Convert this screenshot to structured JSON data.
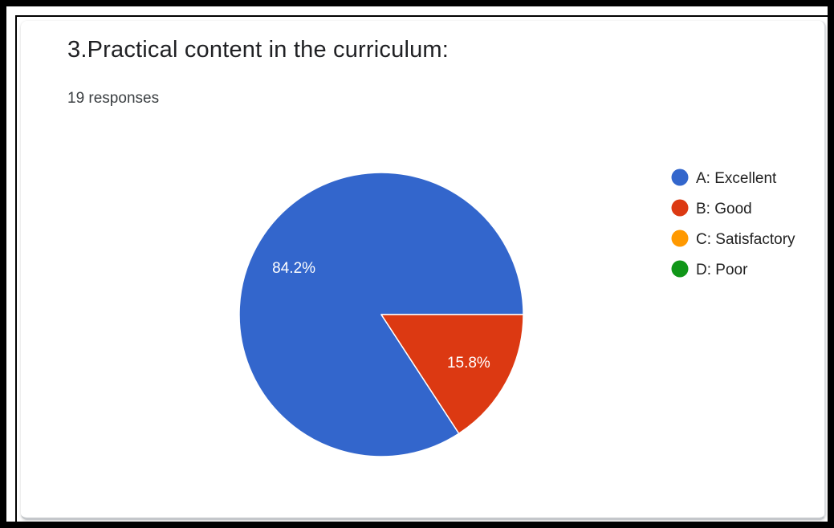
{
  "question": {
    "title": "3.Practical content in the curriculum:",
    "responses_label": "19 responses"
  },
  "chart_data": {
    "type": "pie",
    "slices": [
      {
        "name": "A: Excellent",
        "value": 84.2,
        "label": "84.2%",
        "color": "#3366cc"
      },
      {
        "name": "B: Good",
        "value": 15.8,
        "label": "15.8%",
        "color": "#dc3912"
      },
      {
        "name": "C: Satisfactory",
        "value": 0,
        "label": "",
        "color": "#ff9900"
      },
      {
        "name": "D: Poor",
        "value": 0,
        "label": "",
        "color": "#109618"
      }
    ],
    "start_angle_deg": 0,
    "direction": "counter-clockwise",
    "legend_position": "right"
  }
}
